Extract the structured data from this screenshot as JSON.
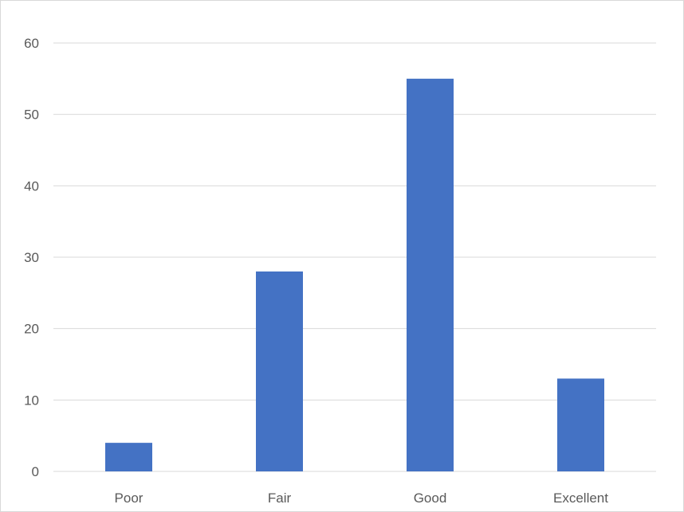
{
  "chart_data": {
    "type": "bar",
    "categories": [
      "Poor",
      "Fair",
      "Good",
      "Excellent"
    ],
    "values": [
      4,
      28,
      55,
      13
    ],
    "title": "",
    "xlabel": "",
    "ylabel": "",
    "ylim": [
      0,
      60
    ],
    "yticks": [
      "0",
      "10",
      "20",
      "30",
      "40",
      "50",
      "60"
    ],
    "grid": true,
    "legend": "none",
    "bar_color": "#4472c4",
    "grid_color": "#d9d9d9"
  }
}
